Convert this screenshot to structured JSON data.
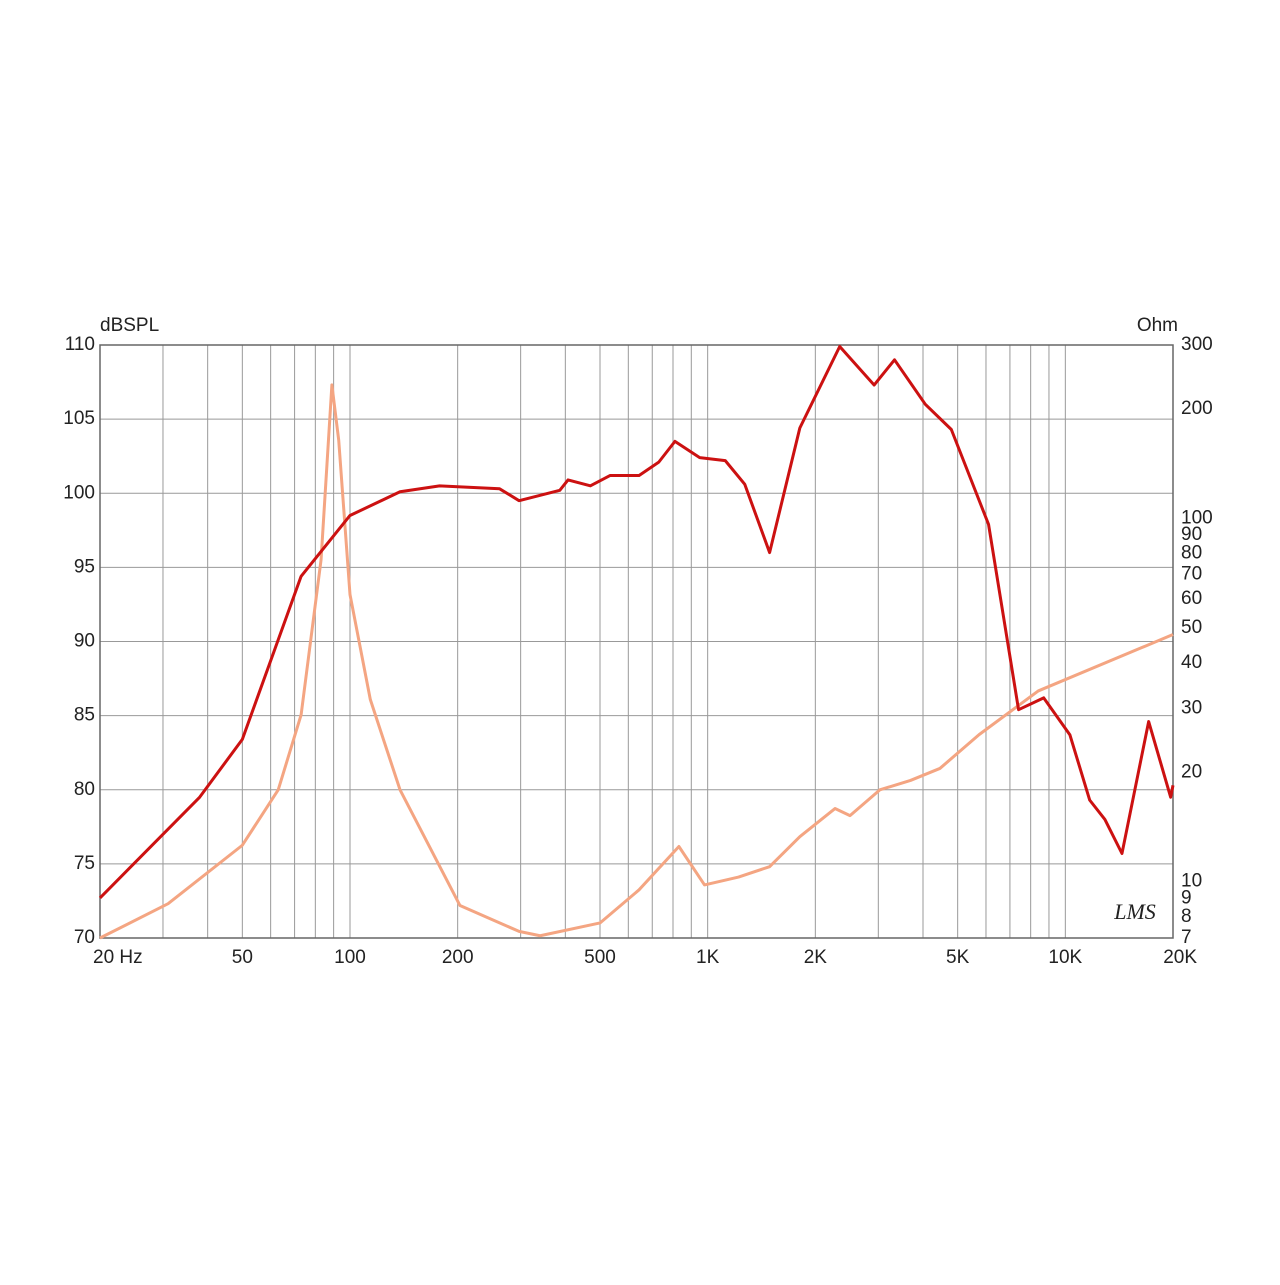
{
  "chart_data": {
    "type": "line",
    "y_label": "dBSPL",
    "y2_label": "Ohm",
    "watermark": "LMS",
    "xscale": "log",
    "y2scale": "log",
    "grid": true,
    "xlim": [
      20,
      20000
    ],
    "ylim": [
      70,
      110
    ],
    "y2lim": [
      7,
      300
    ],
    "xticks": [
      {
        "value": 20,
        "label": "20 Hz"
      },
      50,
      100,
      200,
      500,
      {
        "value": 1000,
        "label": "1K"
      },
      {
        "value": 2000,
        "label": "2K"
      },
      {
        "value": 5000,
        "label": "5K"
      },
      {
        "value": 10000,
        "label": "10K"
      },
      {
        "value": 20000,
        "label": "20K"
      }
    ],
    "xminor": [
      30,
      40,
      60,
      70,
      80,
      90,
      300,
      400,
      600,
      700,
      800,
      900,
      3000,
      4000,
      6000,
      7000,
      8000,
      9000
    ],
    "yticks": [
      70,
      75,
      80,
      85,
      90,
      95,
      100,
      105,
      110
    ],
    "y2ticks": [
      7,
      8,
      9,
      10,
      20,
      30,
      40,
      50,
      60,
      70,
      80,
      90,
      100,
      200,
      300
    ],
    "series": [
      {
        "color": "#cc1111",
        "x": [
          20,
          38,
          50,
          73,
          100,
          138,
          178,
          262,
          297,
          386,
          407,
          470,
          534,
          643,
          730,
          810,
          950,
          1120,
          1270,
          1490,
          1810,
          2340,
          2920,
          3330,
          4060,
          4800,
          6100,
          7400,
          8700,
          10300,
          11700,
          12900,
          14400,
          17100,
          19700,
          20000
        ],
        "values": [
          72.7,
          79.5,
          83.4,
          94.4,
          98.5,
          100.1,
          100.5,
          100.3,
          99.5,
          100.2,
          100.9,
          100.5,
          101.2,
          101.2,
          102.1,
          103.5,
          102.4,
          102.2,
          100.6,
          96.0,
          104.4,
          109.9,
          107.3,
          109.0,
          106.0,
          104.3,
          97.9,
          85.4,
          86.2,
          83.7,
          79.3,
          78.0,
          75.7,
          84.6,
          79.5,
          80.3
        ]
      },
      {
        "color": "#f4a582",
        "axis": "y2",
        "x": [
          20,
          31,
          50,
          63,
          73,
          83,
          89,
          93,
          100,
          114,
          138,
          203,
          247,
          297,
          340,
          500,
          643,
          831,
          980,
          1220,
          1490,
          1810,
          2270,
          2500,
          3030,
          3690,
          4460,
          5740,
          8400,
          20000
        ],
        "values": [
          7.0,
          8.7,
          12.6,
          17.9,
          28.8,
          76.9,
          233,
          164,
          61.7,
          31.7,
          17.9,
          8.6,
          7.9,
          7.3,
          7.1,
          7.7,
          9.5,
          12.5,
          9.8,
          10.3,
          11.0,
          13.3,
          15.9,
          15.2,
          17.9,
          19.0,
          20.5,
          25.4,
          33.5,
          47.9
        ]
      }
    ]
  }
}
